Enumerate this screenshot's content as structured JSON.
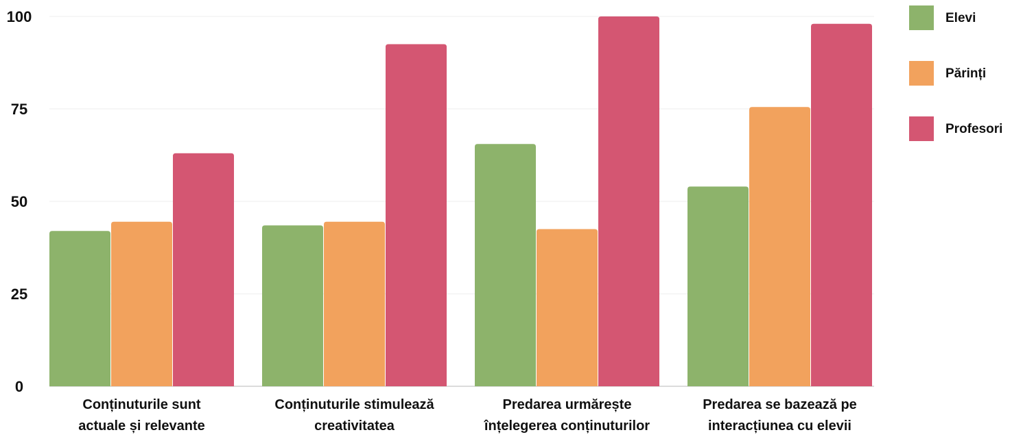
{
  "chart_data": {
    "type": "bar",
    "categories": [
      [
        "Conținuturile sunt",
        "actuale și relevante"
      ],
      [
        "Conținuturile stimulează",
        "creativitatea"
      ],
      [
        "Predarea urmărește",
        "înțelegerea conținuturilor"
      ],
      [
        "Predarea se bazează pe",
        "interacțiunea cu elevii"
      ]
    ],
    "series": [
      {
        "name": "Elevi",
        "color": "#8db36b",
        "values": [
          42,
          43.5,
          65.5,
          54
        ]
      },
      {
        "name": "Părinți",
        "color": "#f2a25d",
        "values": [
          44.5,
          44.5,
          42.5,
          75.5
        ]
      },
      {
        "name": "Profesori",
        "color": "#d45672",
        "values": [
          63,
          92.5,
          100,
          98
        ]
      }
    ],
    "ylim": [
      0,
      100
    ],
    "yticks": [
      0,
      25,
      50,
      75,
      100
    ],
    "grid": true,
    "legend_position": "right",
    "title": "",
    "xlabel": "",
    "ylabel": ""
  }
}
